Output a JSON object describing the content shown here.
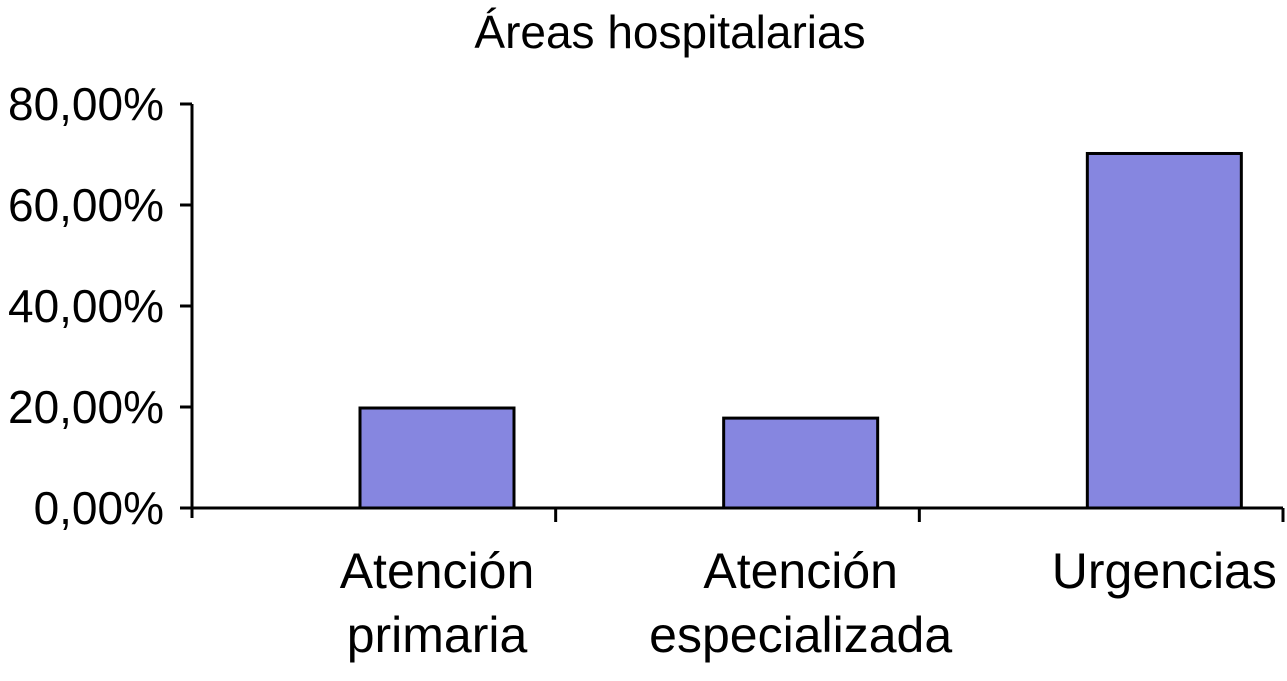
{
  "chart_data": {
    "type": "bar",
    "title": "Áreas hospitalarias",
    "categories": [
      [
        "Atención",
        "primaria"
      ],
      [
        "Atención",
        "especializada"
      ],
      [
        "Urgencias"
      ]
    ],
    "values": [
      19.8,
      17.8,
      70.2
    ],
    "value_format": "percent",
    "ylim": [
      0,
      80
    ],
    "yticks": [
      0,
      20,
      40,
      60,
      80
    ],
    "ytick_labels": [
      "0,00%",
      "20,00%",
      "40,00%",
      "60,00%",
      "80,00%"
    ],
    "grid": false,
    "legend": "none",
    "xlabel": "",
    "ylabel": "",
    "colors": {
      "bar_fill": "#8686e0",
      "bar_stroke": "#000000"
    }
  }
}
